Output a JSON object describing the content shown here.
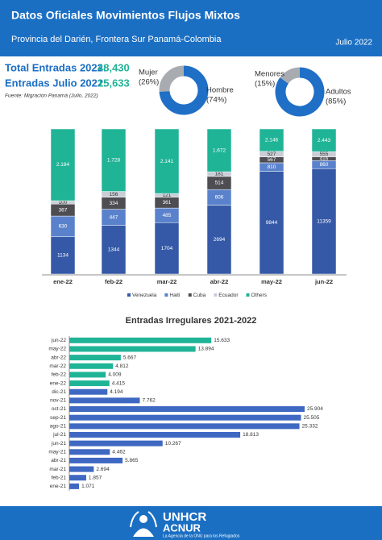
{
  "header": {
    "title": "Datos Oficiales Movimientos Flujos Mixtos",
    "subtitle": "Provincia del Darién, Frontera Sur Panamá-Colombia",
    "date": "Julio 2022"
  },
  "kpis": [
    {
      "label": "Total Entradas 2022:",
      "value": "48,430"
    },
    {
      "label": "Entradas Julio 2022:",
      "value": "15,633"
    }
  ],
  "source": "Fuente: Migración Panamá (Julio, 2022)",
  "footer": {
    "brand": "UNHCR",
    "brand2": "ACNUR",
    "tagline": "La Agencia de la ONU para los Refugiados"
  },
  "chart_data": [
    {
      "type": "pie",
      "categories": [
        "Mujer",
        "Hombre"
      ],
      "values": [
        26,
        74
      ],
      "value_labels": [
        "(26%)",
        "(74%)"
      ],
      "colors": [
        "#a8abb0",
        "#1f6fc6"
      ]
    },
    {
      "type": "pie",
      "categories": [
        "Menores",
        "Adultos"
      ],
      "values": [
        15,
        85
      ],
      "value_labels": [
        "(15%)",
        "(85%)"
      ],
      "colors": [
        "#a8abb0",
        "#1f6fc6"
      ]
    },
    {
      "type": "bar",
      "stacking": "percent",
      "categories": [
        "ene-22",
        "feb-22",
        "mar-22",
        "abr-22",
        "may-22",
        "jun-22"
      ],
      "series": [
        {
          "name": "Venezuela",
          "color": "#3559a6",
          "values": [
            1134,
            1344,
            1704,
            2694,
            9844,
            11359
          ],
          "value_labels": [
            "1134",
            "1344",
            "1704",
            "2694",
            "9844",
            "11359"
          ]
        },
        {
          "name": "Haití",
          "color": "#5a82cc",
          "values": [
            630,
            447,
            485,
            606,
            810,
            860
          ],
          "value_labels": [
            "630",
            "447",
            "485",
            "606",
            "810",
            "860"
          ]
        },
        {
          "name": "Cuba",
          "color": "#4d4d52",
          "values": [
            367,
            334,
            361,
            514,
            567,
            416
          ],
          "value_labels": [
            "367",
            "334",
            "361",
            "514",
            "567",
            "416"
          ]
        },
        {
          "name": "Ecuador",
          "color": "#c9cdd6",
          "values": [
            100,
            156,
            121,
            181,
            527,
            555
          ],
          "value_labels": [
            "100",
            "156",
            "121",
            "181",
            "527",
            "555"
          ]
        },
        {
          "name": "Others",
          "color": "#20b497",
          "values": [
            2184,
            1728,
            2141,
            1672,
            2146,
            2443
          ],
          "value_labels": [
            "2.184",
            "1.728",
            "2.141",
            "1.672",
            "2.146",
            "2.443"
          ]
        }
      ],
      "legend": "bottom"
    },
    {
      "type": "hbar",
      "title": "Entradas Irregulares 2021-2022",
      "categories": [
        "jun-22",
        "may-22",
        "abr-22",
        "mar-22",
        "feb-22",
        "ene-22",
        "dic-21",
        "nov-21",
        "oct-21",
        "sep-21",
        "ago-21",
        "jul-21",
        "jun-21",
        "may-21",
        "abr-21",
        "mar-21",
        "feb-21",
        "ene-21"
      ],
      "values": [
        15633,
        13894,
        5667,
        4812,
        4009,
        4415,
        4194,
        7762,
        25904,
        25505,
        25332,
        18813,
        10267,
        4462,
        5865,
        2694,
        1857,
        1071
      ],
      "value_labels": [
        "15.633",
        "13.894",
        "5.667",
        "4.812",
        "4.009",
        "4.415",
        "4.194",
        "7.762",
        "25.904",
        "25.505",
        "25.332",
        "18.813",
        "10.267",
        "4.462",
        "5.865",
        "2.694",
        "1.857",
        "1.071"
      ],
      "colors": [
        "#20b497",
        "#20b497",
        "#20b497",
        "#20b497",
        "#20b497",
        "#20b497",
        "#3e68c2",
        "#3e68c2",
        "#3e68c2",
        "#3e68c2",
        "#3e68c2",
        "#3e68c2",
        "#3e68c2",
        "#3e68c2",
        "#3e68c2",
        "#3e68c2",
        "#3e68c2",
        "#3e68c2"
      ]
    }
  ]
}
